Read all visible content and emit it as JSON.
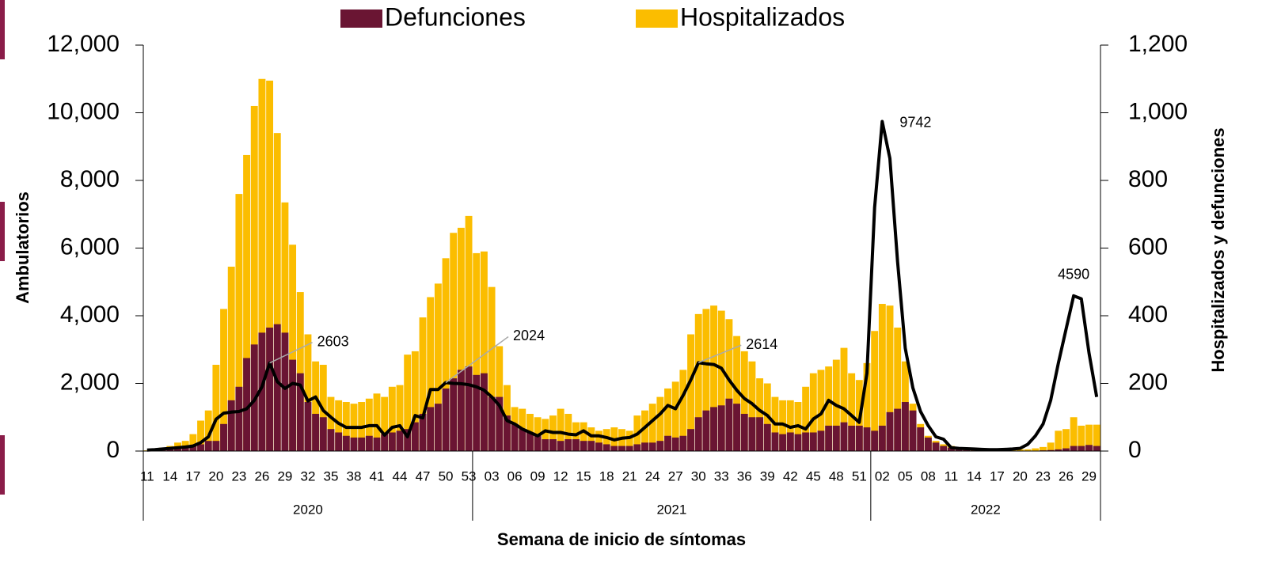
{
  "chart_data": {
    "type": "bar_line",
    "ylabel": "Ambulatorios",
    "y2label": "Hospitalizados y defunciones",
    "xlabel": "Semana de inicio de síntomas",
    "categories": [
      "11",
      null,
      null,
      "14",
      null,
      null,
      "17",
      null,
      null,
      "20",
      null,
      null,
      "23",
      null,
      null,
      "26",
      null,
      null,
      "29",
      null,
      null,
      "32",
      null,
      null,
      "35",
      null,
      null,
      "38",
      null,
      null,
      "41",
      null,
      null,
      "44",
      null,
      null,
      "47",
      null,
      null,
      "50",
      null,
      null,
      "53",
      null,
      null,
      "03",
      null,
      null,
      "06",
      null,
      null,
      "09",
      null,
      null,
      "12",
      null,
      null,
      "15",
      null,
      null,
      "18",
      null,
      null,
      "21",
      null,
      null,
      "24",
      null,
      null,
      "27",
      null,
      null,
      "30",
      null,
      null,
      "33",
      null,
      null,
      "36",
      null,
      null,
      "39",
      null,
      null,
      "42",
      null,
      null,
      "45",
      null,
      null,
      "48",
      null,
      null,
      "51",
      null,
      null,
      "02",
      null,
      null,
      "05",
      null,
      null,
      "08",
      null,
      null,
      "11",
      null,
      null,
      "14",
      null,
      null,
      "17",
      null,
      null,
      "20",
      null,
      null,
      "23",
      null,
      null,
      "26",
      null,
      null,
      "29",
      null
    ],
    "x_groups": [
      {
        "label": "2020",
        "span": 43
      },
      {
        "label": "2021",
        "span": 52
      },
      {
        "label": "2022",
        "span": 30
      }
    ],
    "series": [
      {
        "name": "Defunciones",
        "color": "#6a1533",
        "axis": "y2",
        "values": [
          1,
          2,
          4,
          5,
          8,
          10,
          15,
          20,
          30,
          30,
          80,
          150,
          190,
          275,
          315,
          350,
          365,
          375,
          350,
          270,
          230,
          145,
          110,
          100,
          65,
          55,
          45,
          40,
          40,
          45,
          40,
          50,
          55,
          60,
          65,
          85,
          110,
          130,
          140,
          185,
          215,
          240,
          250,
          225,
          230,
          160,
          160,
          105,
          80,
          65,
          55,
          45,
          35,
          35,
          30,
          35,
          35,
          30,
          30,
          25,
          20,
          15,
          15,
          15,
          20,
          25,
          25,
          30,
          45,
          40,
          45,
          65,
          100,
          120,
          130,
          135,
          155,
          140,
          110,
          100,
          100,
          80,
          55,
          50,
          55,
          50,
          55,
          55,
          60,
          75,
          75,
          85,
          75,
          75,
          70,
          60,
          75,
          115,
          125,
          145,
          120,
          70,
          40,
          25,
          15,
          10,
          5,
          3,
          2,
          2,
          2,
          1,
          1,
          1,
          1,
          1,
          1,
          2,
          3,
          5,
          8,
          15,
          15,
          18,
          15
        ]
      },
      {
        "name": "Hospitalizados",
        "color": "#fbbd00",
        "axis": "y2",
        "values": [
          2,
          5,
          10,
          15,
          25,
          30,
          50,
          90,
          120,
          255,
          420,
          545,
          760,
          875,
          1020,
          1100,
          1095,
          940,
          735,
          610,
          470,
          345,
          265,
          255,
          160,
          150,
          145,
          140,
          145,
          155,
          170,
          160,
          190,
          195,
          285,
          295,
          395,
          455,
          495,
          570,
          645,
          660,
          695,
          585,
          590,
          485,
          310,
          195,
          130,
          125,
          110,
          100,
          95,
          105,
          125,
          110,
          85,
          85,
          70,
          60,
          65,
          70,
          65,
          60,
          105,
          120,
          140,
          160,
          185,
          205,
          240,
          345,
          405,
          420,
          430,
          415,
          390,
          340,
          295,
          265,
          215,
          200,
          160,
          150,
          150,
          145,
          190,
          230,
          240,
          250,
          270,
          305,
          230,
          210,
          260,
          355,
          435,
          430,
          365,
          265,
          140,
          80,
          45,
          30,
          20,
          15,
          10,
          8,
          6,
          5,
          5,
          5,
          5,
          5,
          5,
          5,
          8,
          12,
          25,
          60,
          65,
          100,
          75,
          78,
          78
        ]
      },
      {
        "color": "#000000",
        "axis": "y",
        "values": [
          30,
          40,
          60,
          80,
          100,
          120,
          150,
          250,
          420,
          940,
          1120,
          1150,
          1170,
          1250,
          1500,
          1900,
          2603,
          2050,
          1850,
          2000,
          1950,
          1480,
          1600,
          1200,
          1000,
          820,
          700,
          700,
          700,
          750,
          750,
          470,
          700,
          750,
          420,
          1050,
          980,
          1820,
          1820,
          2024,
          2000,
          1990,
          1960,
          1900,
          1800,
          1600,
          1350,
          900,
          800,
          650,
          550,
          450,
          600,
          550,
          550,
          500,
          480,
          600,
          450,
          450,
          400,
          330,
          380,
          400,
          500,
          700,
          900,
          1100,
          1350,
          1250,
          1650,
          2100,
          2614,
          2580,
          2560,
          2450,
          2100,
          1800,
          1550,
          1400,
          1200,
          1050,
          800,
          800,
          700,
          750,
          650,
          950,
          1100,
          1500,
          1350,
          1250,
          1050,
          850,
          2300,
          7200,
          9742,
          8650,
          5600,
          3040,
          1870,
          1170,
          750,
          420,
          350,
          100,
          80,
          70,
          60,
          50,
          40,
          40,
          50,
          60,
          80,
          200,
          450,
          800,
          1500,
          2600,
          3600,
          4590,
          4500,
          2900,
          1600
        ],
        "value_labels": [
          null,
          null,
          null,
          null,
          null,
          null,
          null,
          null,
          null,
          null,
          null,
          null,
          null,
          null,
          null,
          null,
          "2603",
          null,
          null,
          null,
          null,
          null,
          null,
          null,
          null,
          null,
          null,
          null,
          null,
          null,
          null,
          null,
          null,
          null,
          null,
          null,
          null,
          null,
          null,
          "2024",
          null,
          null,
          null,
          null,
          null,
          null,
          null,
          null,
          null,
          null,
          null,
          null,
          null,
          null,
          null,
          null,
          null,
          null,
          null,
          null,
          null,
          null,
          null,
          null,
          null,
          null,
          null,
          null,
          null,
          null,
          null,
          null,
          "2614",
          null,
          null,
          null,
          null,
          null,
          null,
          null,
          null,
          null,
          null,
          null,
          null,
          null,
          null,
          null,
          null,
          null,
          null,
          null,
          null,
          null,
          null,
          null,
          "9742",
          null,
          null,
          null,
          null,
          null,
          null,
          null,
          null,
          null,
          null,
          null,
          null,
          null,
          null,
          null,
          null,
          null,
          null,
          null,
          null,
          null,
          null,
          null,
          null,
          "4590",
          null,
          null,
          null
        ]
      }
    ],
    "ylim": [
      0,
      12000
    ],
    "yticks": [
      0,
      {
        "value": 2000,
        "label": "2,000"
      },
      {
        "value": 4000,
        "label": "4,000"
      },
      {
        "value": 6000,
        "label": "6,000"
      },
      {
        "value": 8000,
        "label": "8,000"
      },
      {
        "value": 10000,
        "label": "10,000"
      },
      {
        "value": 12000,
        "label": "12,000"
      }
    ],
    "y2lim": [
      0,
      1200
    ],
    "y2ticks": [
      0,
      200,
      400,
      600,
      800,
      {
        "value": 1000,
        "label": "1,000"
      },
      {
        "value": 1200,
        "label": "1,200"
      }
    ],
    "legend": "top"
  }
}
